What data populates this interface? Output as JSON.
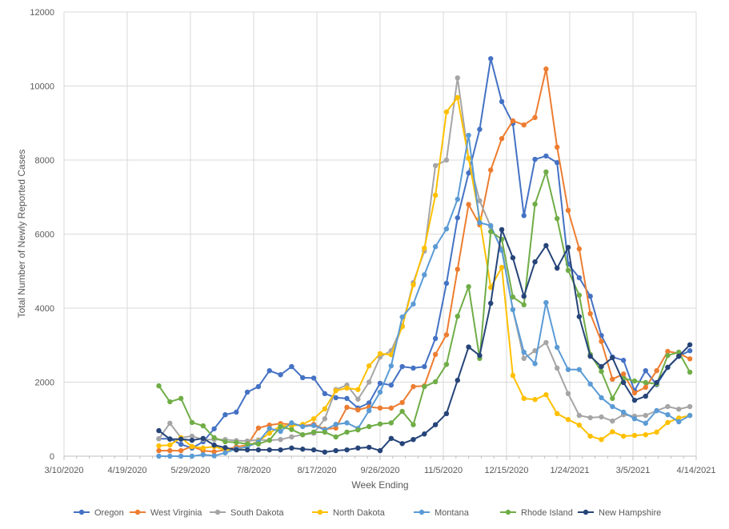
{
  "chart_data": {
    "type": "line",
    "title": "",
    "xlabel": "Week Ending",
    "ylabel": "Total Number of Newly Reported Cases",
    "ylim": [
      0,
      12000
    ],
    "yticks": [
      "0",
      "2000",
      "4000",
      "6000",
      "8000",
      "10000",
      "12000"
    ],
    "xlim": [
      "2020-03-10",
      "2021-04-14"
    ],
    "xticks": [
      "3/10/2020",
      "4/19/2020",
      "5/29/2020",
      "7/8/2020",
      "8/17/2020",
      "9/26/2020",
      "11/5/2020",
      "12/15/2020",
      "1/24/2021",
      "3/5/2021",
      "4/14/2021"
    ],
    "grid": true,
    "legend_position": "bottom",
    "x": [
      "2020-05-09",
      "2020-05-16",
      "2020-05-23",
      "2020-05-30",
      "2020-06-06",
      "2020-06-13",
      "2020-06-20",
      "2020-06-27",
      "2020-07-04",
      "2020-07-11",
      "2020-07-18",
      "2020-07-25",
      "2020-08-01",
      "2020-08-08",
      "2020-08-15",
      "2020-08-22",
      "2020-08-29",
      "2020-09-05",
      "2020-09-12",
      "2020-09-19",
      "2020-09-26",
      "2020-10-03",
      "2020-10-10",
      "2020-10-17",
      "2020-10-24",
      "2020-10-31",
      "2020-11-07",
      "2020-11-14",
      "2020-11-21",
      "2020-11-28",
      "2020-12-05",
      "2020-12-12",
      "2020-12-19",
      "2020-12-26",
      "2021-01-02",
      "2021-01-09",
      "2021-01-16",
      "2021-01-23",
      "2021-01-30",
      "2021-02-06",
      "2021-02-13",
      "2021-02-20",
      "2021-02-27",
      "2021-03-06",
      "2021-03-13",
      "2021-03-20",
      "2021-03-27",
      "2021-04-03",
      "2021-04-10"
    ],
    "series": [
      {
        "name": "Oregon",
        "color": "#4472C4",
        "values": [
          470,
          470,
          320,
          220,
          390,
          740,
          1120,
          1190,
          1730,
          1880,
          2310,
          2200,
          2420,
          2120,
          2110,
          1690,
          1580,
          1560,
          1300,
          1440,
          1970,
          1920,
          2420,
          2380,
          2420,
          3180,
          4670,
          6440,
          7650,
          8830,
          10740,
          9580,
          8990,
          6500,
          8020,
          8110,
          7930,
          5190,
          4820,
          4320,
          3260,
          2680,
          2590,
          1770,
          2310,
          1930,
          2400,
          2700,
          2850
        ]
      },
      {
        "name": "West Virginia",
        "color": "#ED7D31",
        "values": [
          150,
          150,
          150,
          260,
          150,
          120,
          170,
          250,
          300,
          760,
          840,
          880,
          860,
          820,
          860,
          730,
          760,
          1320,
          1250,
          1330,
          1300,
          1300,
          1450,
          1880,
          1900,
          2750,
          3280,
          5050,
          6800,
          6250,
          7730,
          8580,
          9060,
          8950,
          9150,
          10460,
          8350,
          6640,
          5600,
          3850,
          3100,
          2080,
          2220,
          1710,
          1860,
          2310,
          2830,
          2780,
          2630
        ]
      },
      {
        "name": "South Dakota",
        "color": "#A5A5A5",
        "values": [
          470,
          890,
          500,
          540,
          450,
          450,
          450,
          420,
          410,
          440,
          430,
          450,
          520,
          580,
          620,
          1010,
          1800,
          1920,
          1540,
          2000,
          2680,
          2850,
          3520,
          4690,
          5540,
          7850,
          8000,
          10220,
          8040,
          6900,
          6200,
          5600,
          3960,
          2640,
          2850,
          3070,
          2380,
          1690,
          1100,
          1040,
          1060,
          950,
          1120,
          1080,
          1100,
          1230,
          1340,
          1270,
          1340
        ]
      },
      {
        "name": "North Dakota",
        "color": "#FFC000",
        "values": [
          280,
          300,
          500,
          260,
          220,
          260,
          170,
          170,
          260,
          410,
          620,
          820,
          820,
          860,
          1010,
          1280,
          1770,
          1840,
          1800,
          2440,
          2770,
          2740,
          3500,
          4630,
          5620,
          7050,
          9300,
          9690,
          8050,
          6420,
          4560,
          5100,
          2180,
          1560,
          1530,
          1660,
          1150,
          990,
          840,
          540,
          450,
          660,
          540,
          560,
          580,
          650,
          910,
          1030,
          1100
        ]
      },
      {
        "name": "Montana",
        "color": "#5B9BD5",
        "values": [
          0,
          0,
          0,
          0,
          40,
          10,
          90,
          200,
          250,
          390,
          750,
          670,
          900,
          800,
          830,
          710,
          860,
          900,
          750,
          1230,
          1730,
          2440,
          3760,
          4110,
          4900,
          5660,
          6140,
          6940,
          8670,
          6310,
          6230,
          5560,
          3960,
          2810,
          2500,
          4150,
          2940,
          2340,
          2340,
          1950,
          1580,
          1340,
          1190,
          1010,
          890,
          1230,
          1120,
          930,
          1100
        ]
      },
      {
        "name": "Rhode Island",
        "color": "#70AD47",
        "values": [
          1900,
          1470,
          1560,
          910,
          820,
          500,
          390,
          370,
          330,
          330,
          430,
          800,
          720,
          580,
          650,
          650,
          520,
          650,
          710,
          800,
          870,
          900,
          1210,
          850,
          1880,
          2010,
          2480,
          3780,
          4580,
          2640,
          6070,
          5860,
          4300,
          4090,
          6810,
          7680,
          6420,
          5020,
          4350,
          2750,
          2290,
          1560,
          2100,
          2030,
          1990,
          1950,
          2720,
          2810,
          2270
        ]
      },
      {
        "name": "New Hampshire",
        "color": "#264478",
        "values": [
          690,
          460,
          460,
          430,
          480,
          300,
          230,
          170,
          170,
          170,
          170,
          170,
          220,
          190,
          170,
          110,
          150,
          170,
          220,
          240,
          150,
          480,
          340,
          450,
          600,
          850,
          1150,
          2050,
          2950,
          2720,
          4130,
          6120,
          5360,
          4320,
          5250,
          5690,
          5080,
          5640,
          3770,
          2700,
          2420,
          2660,
          1990,
          1510,
          1620,
          1990,
          2400,
          2700,
          3010
        ]
      }
    ]
  }
}
